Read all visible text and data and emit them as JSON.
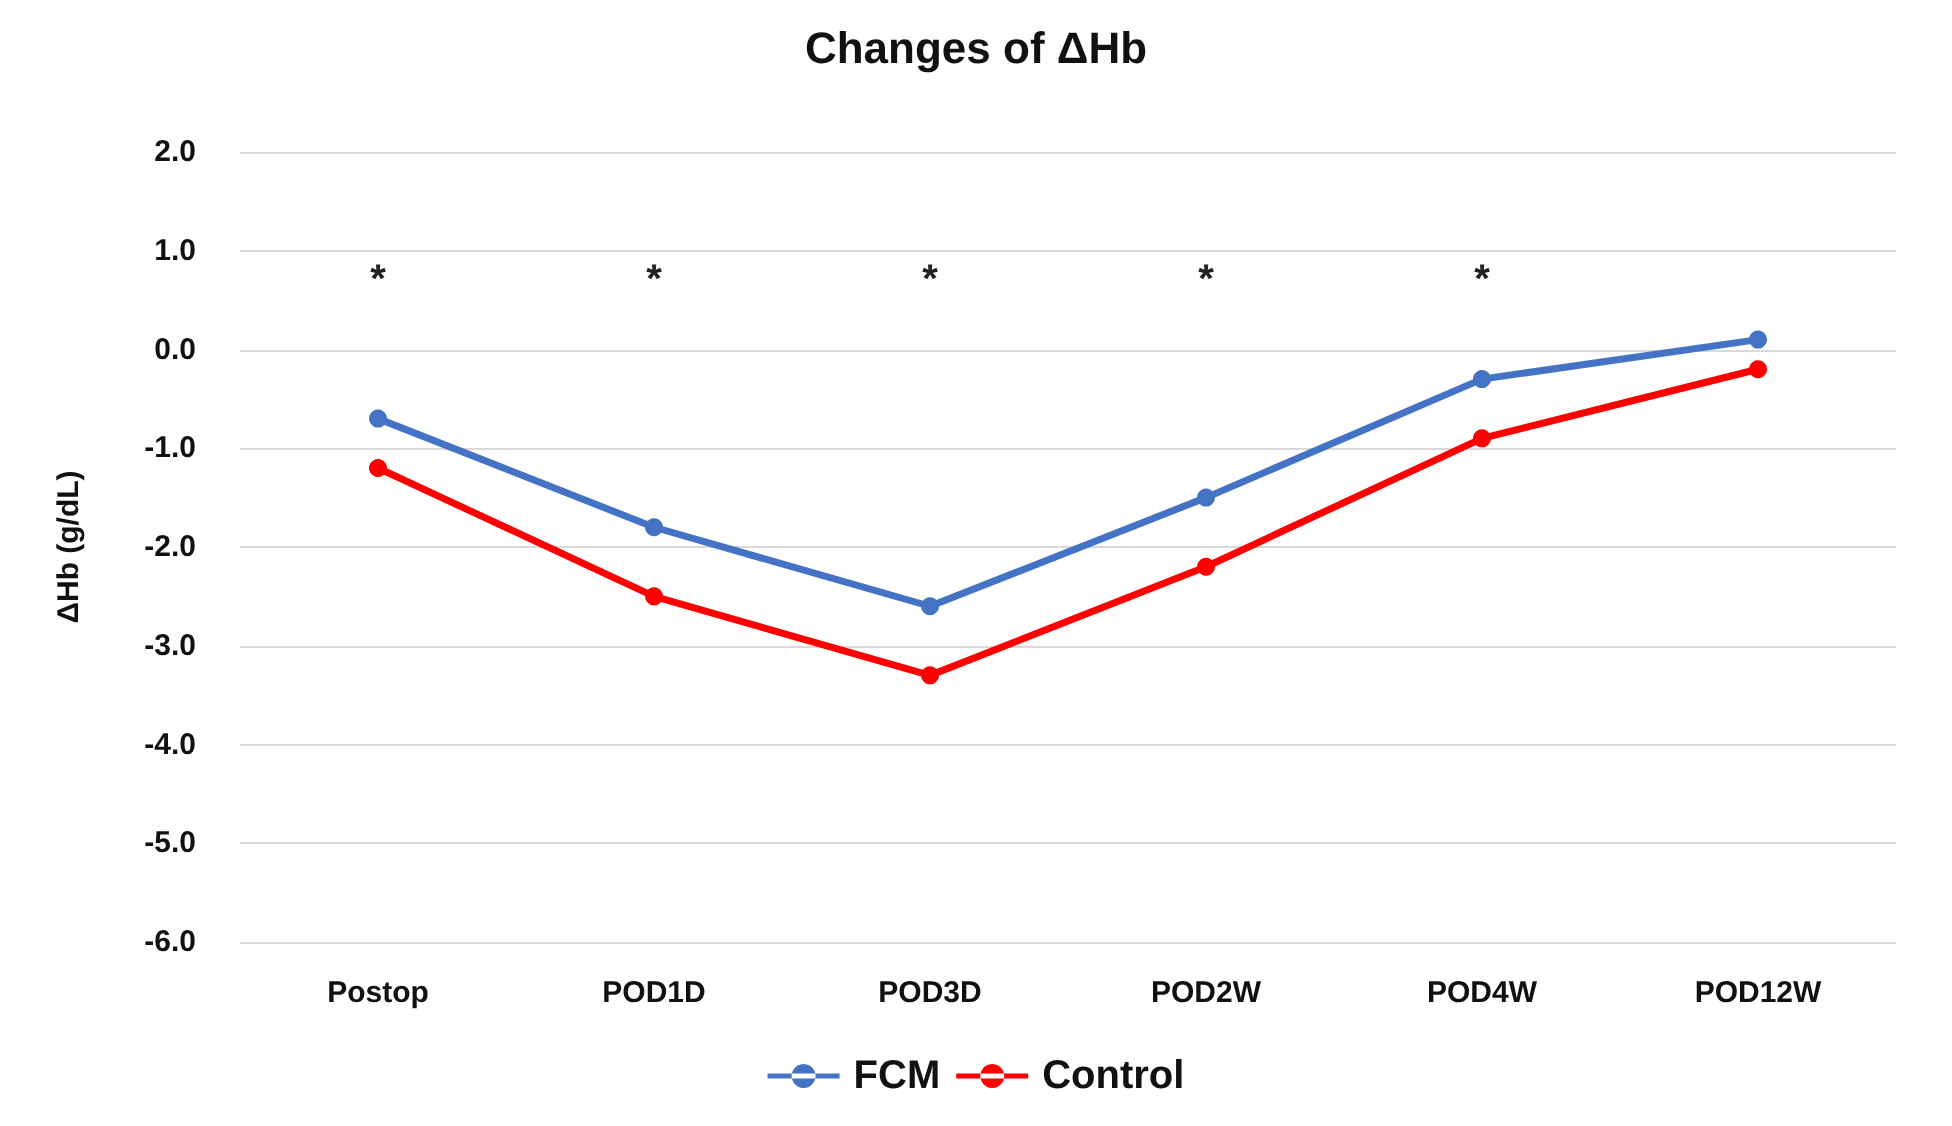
{
  "chart_data": {
    "type": "line",
    "title": "Changes of ΔHb",
    "ylabel": "ΔHb (g/dL)",
    "categories": [
      "Postop",
      "POD1D",
      "POD3D",
      "POD2W",
      "POD4W",
      "POD12W"
    ],
    "series": [
      {
        "name": "FCM",
        "color": "#4472c4",
        "values": [
          -0.7,
          -1.8,
          -2.6,
          -1.5,
          -0.3,
          0.1
        ]
      },
      {
        "name": "Control",
        "color": "#ff0000",
        "values": [
          -1.2,
          -2.5,
          -3.3,
          -2.2,
          -0.9,
          -0.2
        ]
      }
    ],
    "ylim": [
      -6,
      2
    ],
    "yticks": [
      {
        "value": -6,
        "label": "-6.0"
      },
      {
        "value": -5,
        "label": "-5.0"
      },
      {
        "value": -4,
        "label": "-4.0"
      },
      {
        "value": -3,
        "label": "-3.0"
      },
      {
        "value": -2,
        "label": "-2.0"
      },
      {
        "value": -1,
        "label": "-1.0"
      },
      {
        "value": 0,
        "label": "0.0"
      },
      {
        "value": 1,
        "label": "1.0"
      },
      {
        "value": 2,
        "label": "2.0"
      }
    ],
    "annotations": [
      "*",
      "*",
      "*",
      "*",
      "*"
    ],
    "grid": "y",
    "legend": "bottom",
    "marker": "circle",
    "line_style": "solid"
  }
}
